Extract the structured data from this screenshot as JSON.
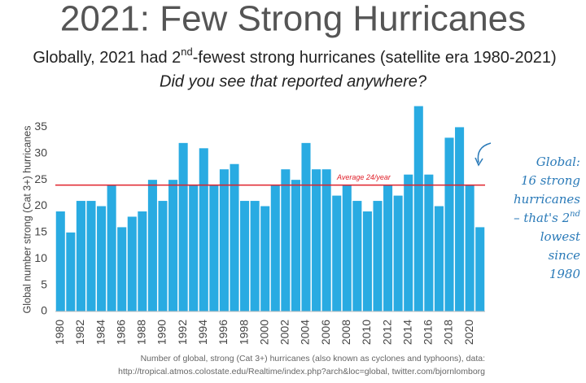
{
  "chart_data": {
    "type": "bar",
    "title": "2021: Few Strong Hurricanes",
    "subtitle": {
      "before": "Globally, 2021 had 2",
      "sup": "nd",
      "after": "-fewest strong hurricanes (satellite era 1980-2021)"
    },
    "question": "Did you see that reported anywhere?",
    "ylabel": "Global number strong (Cat 3+) hurricanes",
    "categories": [
      "1980",
      null,
      "1982",
      null,
      "1984",
      null,
      "1986",
      null,
      "1988",
      null,
      "1990",
      null,
      "1992",
      null,
      "1994",
      null,
      "1996",
      null,
      "1998",
      null,
      "2000",
      null,
      "2002",
      null,
      "2004",
      null,
      "2006",
      null,
      "2008",
      null,
      "2010",
      null,
      "2012",
      null,
      "2014",
      null,
      "2016",
      null,
      "2018",
      null,
      "2020",
      null
    ],
    "values": [
      19,
      15,
      21,
      21,
      20,
      24,
      16,
      18,
      19,
      25,
      21,
      25,
      32,
      24,
      31,
      24,
      27,
      28,
      21,
      21,
      20,
      24,
      27,
      25,
      32,
      27,
      27,
      22,
      24,
      21,
      19,
      21,
      24,
      22,
      26,
      39,
      26,
      20,
      33,
      35,
      24,
      16
    ],
    "color": "#29abe2",
    "ylim": [
      0,
      38
    ],
    "yticks": [
      0,
      5,
      10,
      15,
      20,
      25,
      30,
      35
    ],
    "grid": false,
    "average": {
      "value": 24,
      "label": "Average 24/year",
      "color": "#e0202a"
    },
    "annotation_lines": [
      {
        "text": "Global:"
      },
      {
        "text": "16 strong"
      },
      {
        "text": "hurricanes"
      },
      {
        "text": "– that's 2",
        "sup": "nd"
      },
      {
        "text": "lowest"
      },
      {
        "text": "since"
      },
      {
        "text": "1980"
      }
    ],
    "footnote": [
      "Number of global, strong (Cat 3+) hurricanes (also known as cyclones and typhoons), data:",
      "http://tropical.atmos.colostate.edu/Realtime/index.php?arch&loc=global, twitter.com/bjornlomborg"
    ]
  }
}
